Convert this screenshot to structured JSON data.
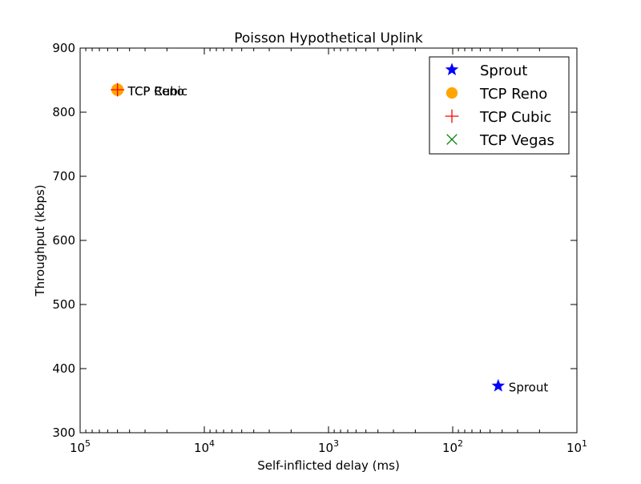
{
  "chart_data": {
    "type": "scatter",
    "title": "Poisson Hypothetical Uplink",
    "xlabel": "Self-inflicted delay (ms)",
    "ylabel": "Throughput (kbps)",
    "x_scale": "log",
    "x_reversed": true,
    "xlim": [
      100000,
      10
    ],
    "ylim": [
      300,
      900
    ],
    "x_ticks": [
      {
        "value": 100000,
        "base": "10",
        "exp": "5"
      },
      {
        "value": 10000,
        "base": "10",
        "exp": "4"
      },
      {
        "value": 1000,
        "base": "10",
        "exp": "3"
      },
      {
        "value": 100,
        "base": "10",
        "exp": "2"
      },
      {
        "value": 10,
        "base": "10",
        "exp": "1"
      }
    ],
    "y_ticks": [
      "300",
      "400",
      "500",
      "600",
      "700",
      "800",
      "900"
    ],
    "grid": false,
    "legend_position": "top-right",
    "series": [
      {
        "name": "Sprout",
        "marker": "star",
        "color": "#0000ff",
        "x": 43,
        "y": 373,
        "point_label": "Sprout"
      },
      {
        "name": "TCP Reno",
        "marker": "circle",
        "color": "#ffa500",
        "x": 50000,
        "y": 835,
        "point_label": "TCP Reno"
      },
      {
        "name": "TCP Cubic",
        "marker": "plus",
        "color": "#ff0000",
        "x": 50000,
        "y": 835,
        "point_label": "TCP Cubic"
      },
      {
        "name": "TCP Vegas",
        "marker": "x",
        "color": "#008000",
        "x": null,
        "y": null,
        "point_label": ""
      }
    ]
  }
}
